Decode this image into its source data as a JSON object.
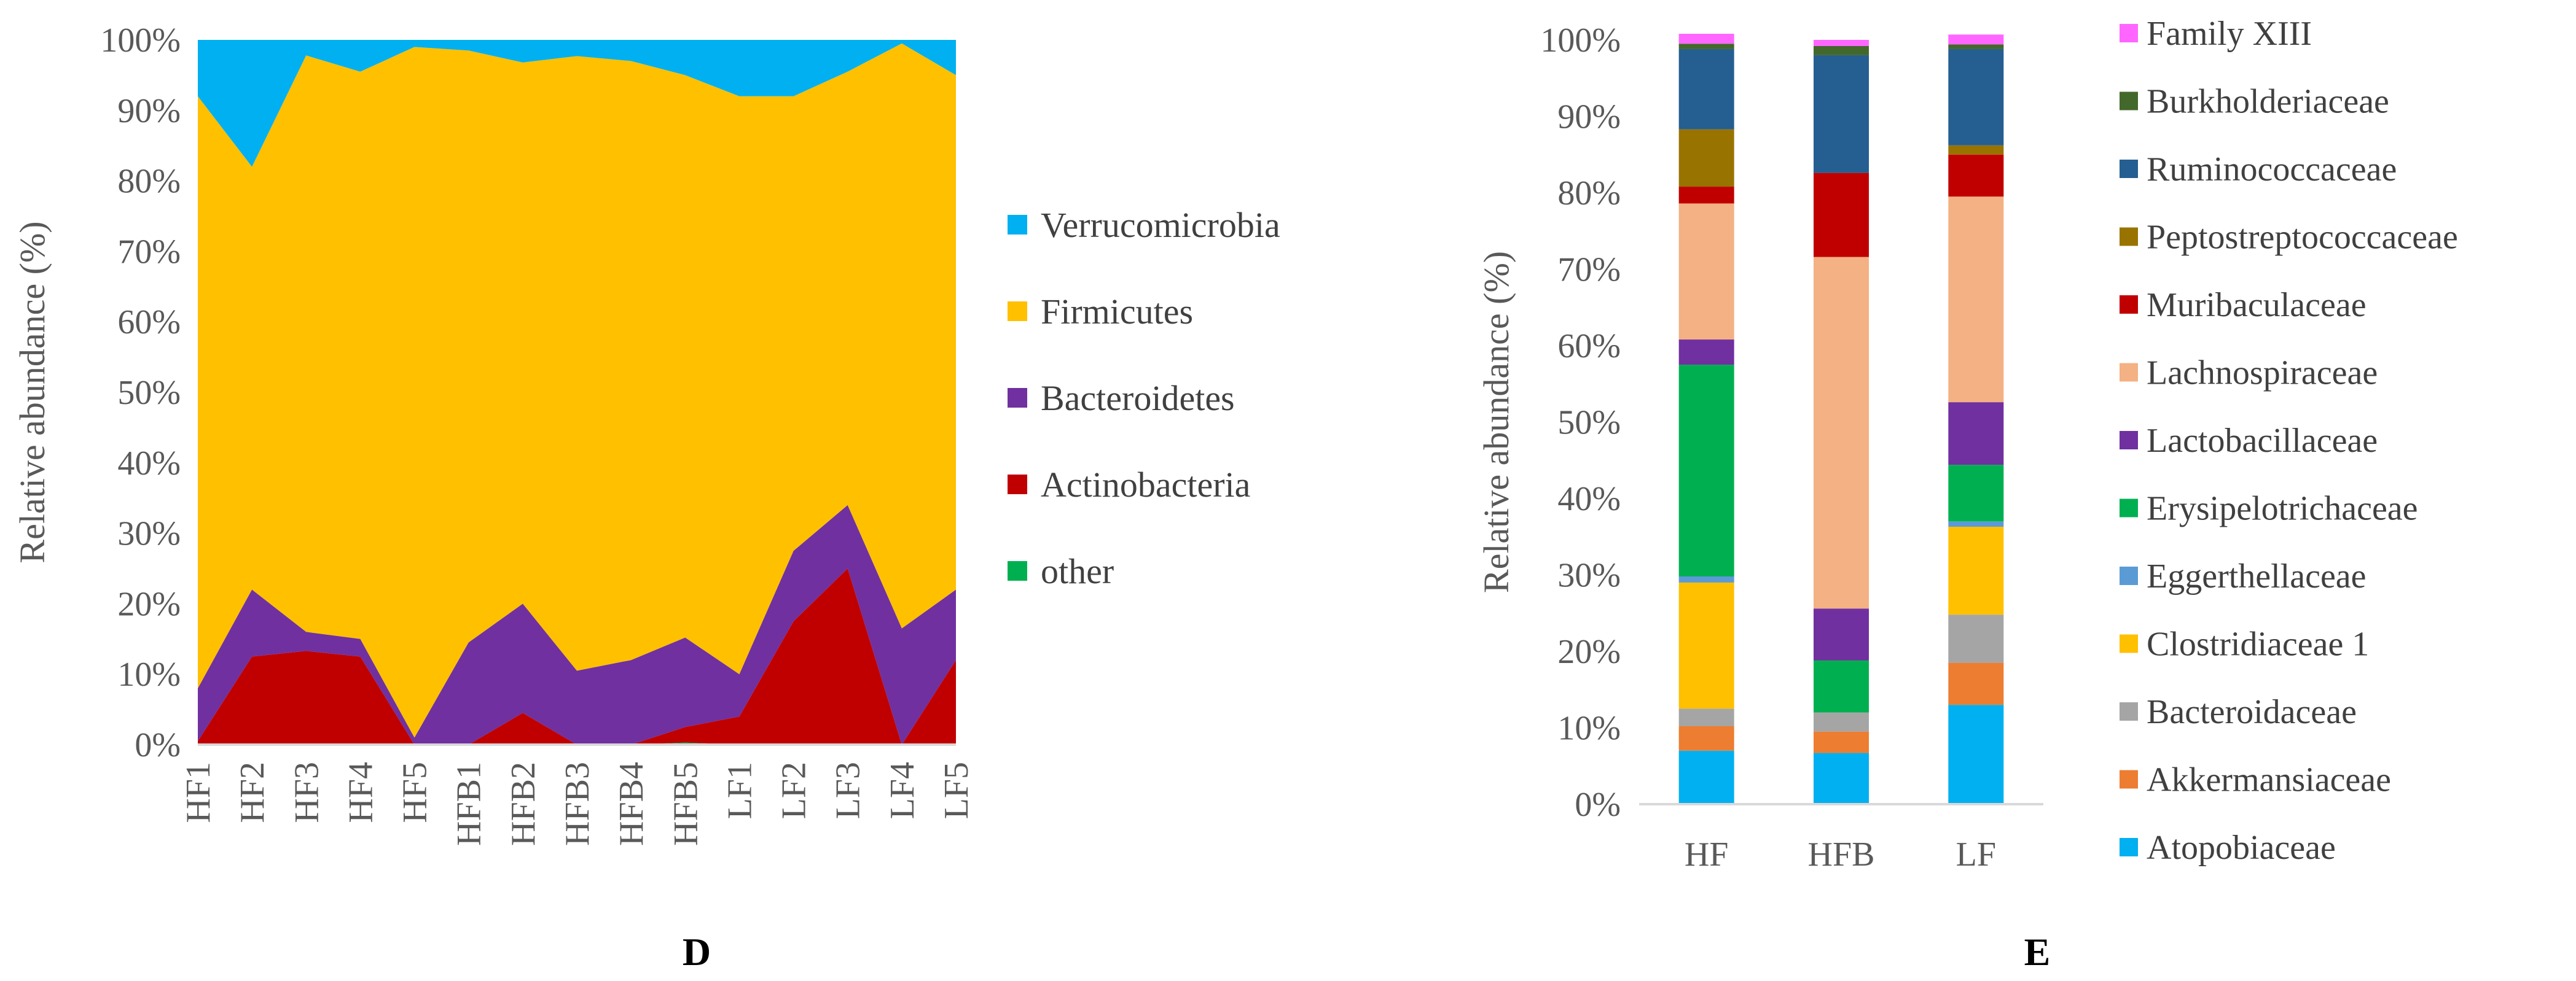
{
  "chart_data": [
    {
      "panel": "D",
      "type": "area",
      "stacked": true,
      "percent": true,
      "ylabel": "Relative abundance (%)",
      "xlabel": "",
      "ylim": [
        0,
        100
      ],
      "yticks": [
        "0%",
        "10%",
        "20%",
        "30%",
        "40%",
        "50%",
        "60%",
        "70%",
        "80%",
        "90%",
        "100%"
      ],
      "categories": [
        "HF1",
        "HF2",
        "HF3",
        "HF4",
        "HF5",
        "HFB1",
        "HFB2",
        "HFB3",
        "HFB4",
        "HFB5",
        "LF1",
        "LF2",
        "LF3",
        "LF4",
        "LF5"
      ],
      "series": [
        {
          "name": "other",
          "color": "#00B050",
          "values": [
            0,
            0,
            0,
            0,
            0,
            0,
            0,
            0,
            0,
            0.3,
            0,
            0,
            0,
            0,
            0
          ]
        },
        {
          "name": "Actinobacteria",
          "color": "#C00000",
          "values": [
            0.5,
            12.5,
            13.3,
            12.5,
            0,
            0,
            4.5,
            0,
            0,
            2.2,
            4,
            17.5,
            25,
            0,
            12
          ]
        },
        {
          "name": "Bacteroidetes",
          "color": "#7030A0",
          "values": [
            7.5,
            9.5,
            2.7,
            2.5,
            1,
            14.5,
            15.5,
            10.5,
            12,
            12.7,
            6,
            10,
            9,
            16.5,
            10
          ]
        },
        {
          "name": "Firmicutes",
          "color": "#FFC000",
          "values": [
            84,
            60,
            81.8,
            80.5,
            98,
            84,
            76.8,
            87.2,
            85,
            79.8,
            82,
            64.5,
            61.5,
            83,
            73
          ]
        },
        {
          "name": "Verrucomicrobia",
          "color": "#00B0F0",
          "values": [
            8,
            18,
            2.2,
            4.5,
            1,
            1.5,
            3.2,
            2.3,
            3,
            5,
            8,
            8,
            4.5,
            0.5,
            5
          ]
        }
      ],
      "legend": [
        "Verrucomicrobia",
        "Firmicutes",
        "Bacteroidetes",
        "Actinobacteria",
        "other"
      ],
      "legend_position": "right",
      "label": "D"
    },
    {
      "panel": "E",
      "type": "bar",
      "stacked": true,
      "percent": true,
      "ylabel": "Relative abundance (%)",
      "xlabel": "",
      "ylim": [
        0,
        100
      ],
      "yticks": [
        "0%",
        "10%",
        "20%",
        "30%",
        "40%",
        "50%",
        "60%",
        "70%",
        "80%",
        "90%",
        "100%"
      ],
      "categories": [
        "HF",
        "HFB",
        "LF"
      ],
      "series": [
        {
          "name": "Atopobiaceae",
          "color": "#00B0F0",
          "values": [
            7,
            6.7,
            13
          ]
        },
        {
          "name": "Akkermansiaceae",
          "color": "#ED7D31",
          "values": [
            3.2,
            2.8,
            5.5
          ]
        },
        {
          "name": "Bacteroidaceae",
          "color": "#A5A5A5",
          "values": [
            2.3,
            2.5,
            6.3
          ]
        },
        {
          "name": "Clostridiaceae 1",
          "color": "#FFC000",
          "values": [
            16.5,
            0,
            11.5
          ]
        },
        {
          "name": "Eggerthellaceae",
          "color": "#5B9BD5",
          "values": [
            0.8,
            0,
            0.7
          ]
        },
        {
          "name": "Erysipelotrichaceae",
          "color": "#00B050",
          "values": [
            27.7,
            6.8,
            7.4
          ]
        },
        {
          "name": "Lactobacillaceae",
          "color": "#7030A0",
          "values": [
            3.3,
            6.8,
            8.2
          ]
        },
        {
          "name": "Lachnospiraceae",
          "color": "#F4B183",
          "values": [
            17.8,
            46,
            26.9
          ]
        },
        {
          "name": "Muribaculaceae",
          "color": "#C00000",
          "values": [
            2.2,
            11,
            5.5
          ]
        },
        {
          "name": "Peptostreptococcaceae",
          "color": "#997300",
          "values": [
            7.5,
            0,
            1.2
          ]
        },
        {
          "name": "Ruminococcaceae",
          "color": "#255E91",
          "values": [
            10.5,
            15.4,
            12.6
          ]
        },
        {
          "name": "Burkholderiaceae",
          "color": "#43682B",
          "values": [
            0.7,
            1.2,
            0.6
          ]
        },
        {
          "name": "Family XIII",
          "color": "#FF66FF",
          "values": [
            1.3,
            0.8,
            1.3
          ]
        }
      ],
      "legend": [
        "Family XIII",
        "Burkholderiaceae",
        "Ruminococcaceae",
        "Peptostreptococcaceae",
        "Muribaculaceae",
        "Lachnospiraceae",
        "Lactobacillaceae",
        "Erysipelotrichaceae",
        "Eggerthellaceae",
        "Clostridiaceae 1",
        "Bacteroidaceae",
        "Akkermansiaceae",
        "Atopobiaceae"
      ],
      "legend_position": "right",
      "label": "E"
    }
  ]
}
